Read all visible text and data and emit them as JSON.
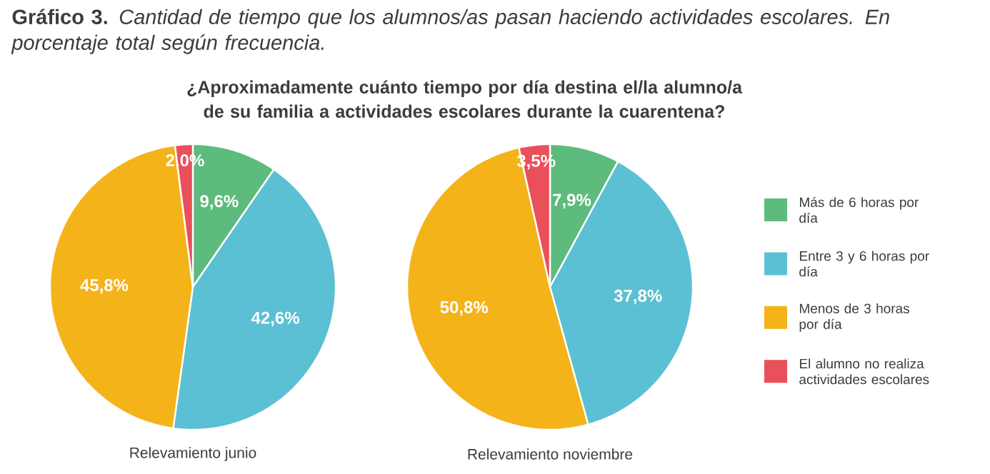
{
  "chart_data": {
    "type": "pie",
    "title": "**Gráfico 3.** *Cantidad de tiempo que los alumnos/as pasan haciendo actividades escolares. En porcentaje total según frecuencia.*",
    "subtitle": "¿Aproximadamente cuánto tiempo por día destina el/la alumno/a de su familia a actividades escolares durante la cuarentena?",
    "categories": [
      "Más de 6 horas por día",
      "Entre 3 y 6 horas por día",
      "Menos de 3 horas por día",
      "El alumno no realiza actividades escolares"
    ],
    "colors": [
      "#5dbb7e",
      "#5bc0d4",
      "#f5b31a",
      "#e9505a"
    ],
    "legend": "right",
    "series": [
      {
        "name": "Relevamiento junio",
        "values": [
          9.6,
          42.6,
          45.8,
          2.0
        ],
        "value_labels": [
          "9,6%",
          "42,6%",
          "45,8%",
          "2,0%"
        ]
      },
      {
        "name": "Relevamiento noviembre",
        "values": [
          7.9,
          37.8,
          50.8,
          3.5
        ],
        "value_labels": [
          "7,9%",
          "37,8%",
          "50,8%",
          "3,5%"
        ]
      }
    ]
  }
}
